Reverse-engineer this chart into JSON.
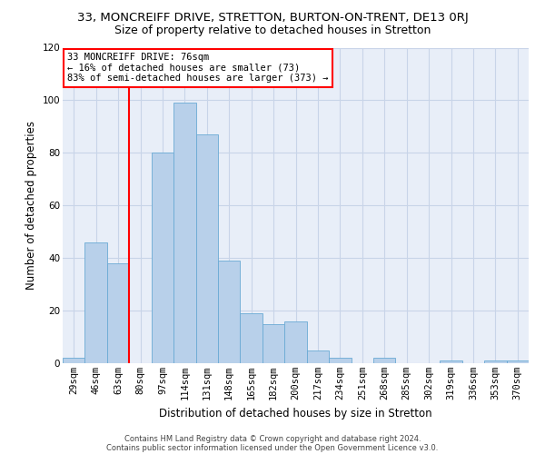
{
  "title_line1": "33, MONCREIFF DRIVE, STRETTON, BURTON-ON-TRENT, DE13 0RJ",
  "title_line2": "Size of property relative to detached houses in Stretton",
  "xlabel": "Distribution of detached houses by size in Stretton",
  "ylabel": "Number of detached properties",
  "footnote1": "Contains HM Land Registry data © Crown copyright and database right 2024.",
  "footnote2": "Contains public sector information licensed under the Open Government Licence v3.0.",
  "bin_labels": [
    "29sqm",
    "46sqm",
    "63sqm",
    "80sqm",
    "97sqm",
    "114sqm",
    "131sqm",
    "148sqm",
    "165sqm",
    "182sqm",
    "200sqm",
    "217sqm",
    "234sqm",
    "251sqm",
    "268sqm",
    "285sqm",
    "302sqm",
    "319sqm",
    "336sqm",
    "353sqm",
    "370sqm"
  ],
  "bar_values": [
    2,
    46,
    38,
    0,
    80,
    99,
    87,
    39,
    19,
    15,
    16,
    5,
    2,
    0,
    2,
    0,
    0,
    1,
    0,
    1,
    1
  ],
  "bar_color": "#b8d0ea",
  "bar_edge_color": "#6aaad4",
  "annotation_text": "33 MONCREIFF DRIVE: 76sqm\n← 16% of detached houses are smaller (73)\n83% of semi-detached houses are larger (373) →",
  "annotation_box_color": "white",
  "annotation_box_edge_color": "red",
  "vline_color": "red",
  "vline_x_index": 2.5,
  "ylim": [
    0,
    120
  ],
  "yticks": [
    0,
    20,
    40,
    60,
    80,
    100,
    120
  ],
  "grid_color": "#c8d4e8",
  "bg_color": "#e8eef8",
  "title1_fontsize": 9.5,
  "title2_fontsize": 9,
  "axis_label_fontsize": 8.5,
  "tick_fontsize": 7.5,
  "annotation_fontsize": 7.5,
  "footnote_fontsize": 6
}
